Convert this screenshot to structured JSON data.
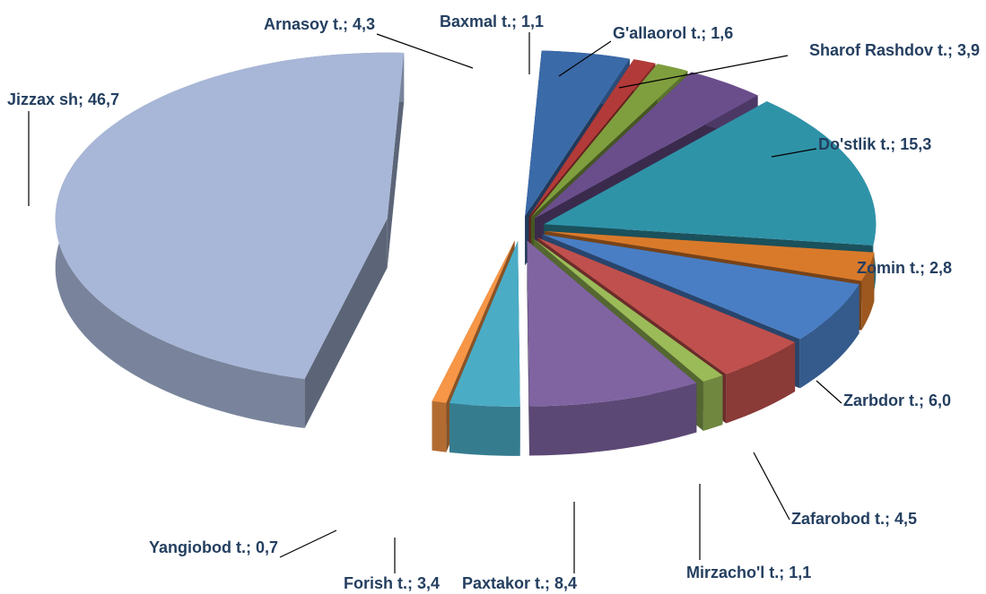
{
  "chart_data": {
    "type": "pie3d",
    "labels": [
      "Arnasoy t.; 4,3",
      "Baxmal t.; 1,1",
      "G'allaorol t.; 1,6",
      "Sharof Rashdov  t.; 3,9",
      "Do'stlik t.; 15,3",
      "Zomin t.; 2,8",
      "Zarbdor t.; 6,0",
      "Zafarobod t.; 4,5",
      "Mirzacho'l t.; 1,1",
      "Paxtakor t.; 8,4",
      "Forish t.; 3,4",
      "Yangiobod t.; 0,7",
      "Jizzax sh; 46,7"
    ],
    "values": [
      4.3,
      1.1,
      1.6,
      3.9,
      15.3,
      2.8,
      6.0,
      4.5,
      1.1,
      8.4,
      3.4,
      0.7,
      46.7
    ],
    "colors": [
      "#3a6aa8",
      "#b23a38",
      "#7f9e3e",
      "#6a4e8c",
      "#2f93a8",
      "#d97a2b",
      "#4a7ec4",
      "#c0504d",
      "#9bbb59",
      "#8064a2",
      "#4bacc6",
      "#f79646",
      "#a8b7d8"
    ]
  }
}
